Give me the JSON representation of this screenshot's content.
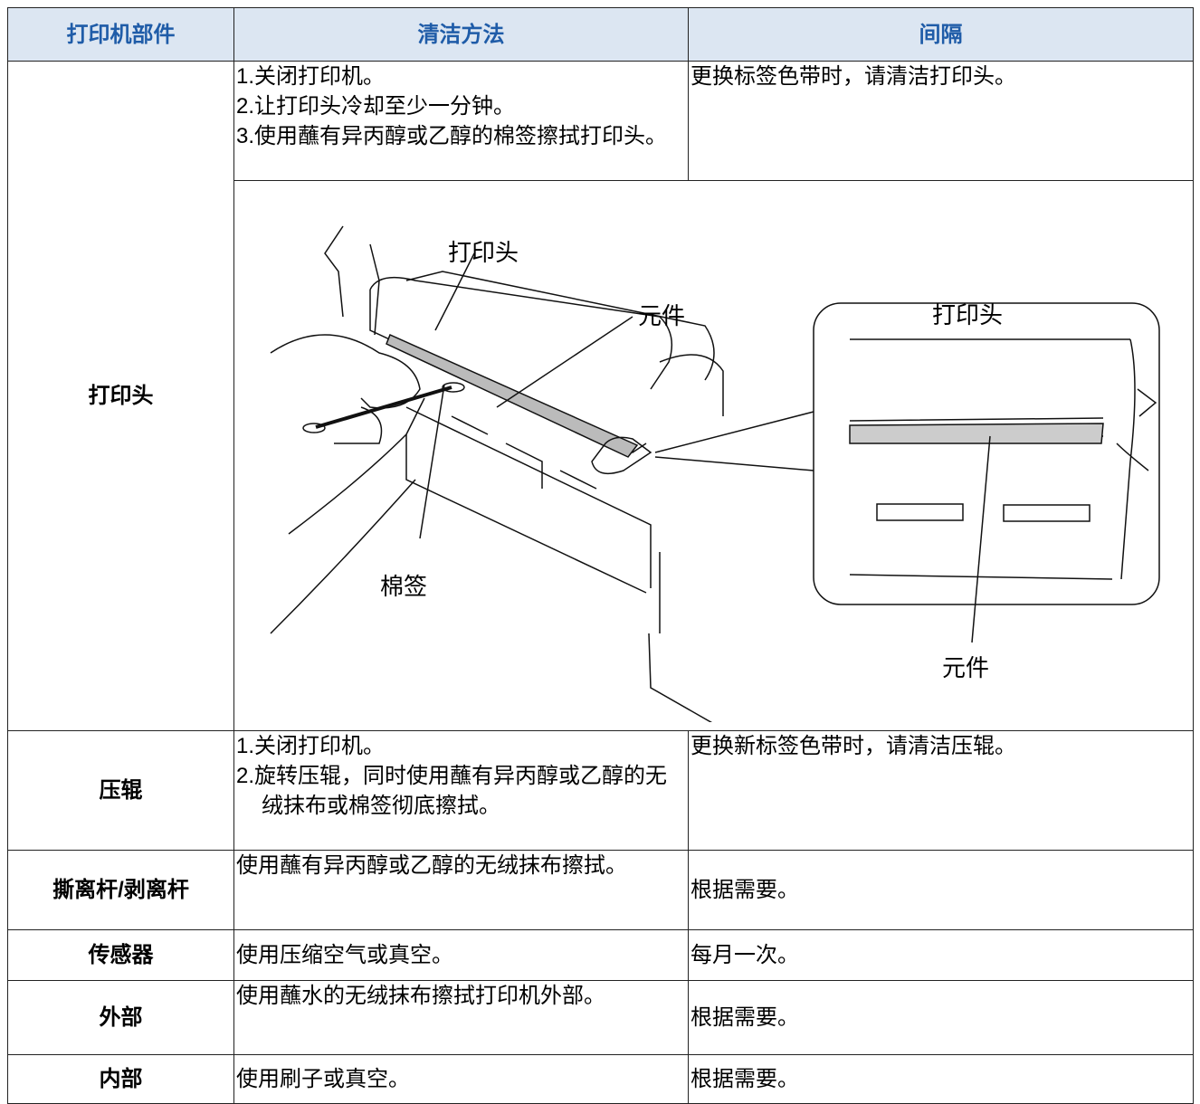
{
  "table": {
    "header": [
      "打印机部件",
      "清洁方法",
      "间隔"
    ],
    "rows": [
      {
        "part": "打印头",
        "method": [
          "1.关闭打印机。",
          "2.让打印头冷却至少一分钟。",
          "3.使用蘸有异丙醇或乙醇的棉签擦拭打印头。"
        ],
        "interval": "更换标签色带时，请清洁打印头。",
        "figure": {
          "labels": [
            "打印头",
            "元件",
            "棉签",
            "打印头",
            "元件"
          ]
        }
      },
      {
        "part": "压辊",
        "method": [
          "1.关闭打印机。",
          "2.旋转压辊，同时使用蘸有异丙醇或乙醇的无绒抹布或棉签彻底擦拭。"
        ],
        "interval": "更换新标签色带时，请清洁压辊。"
      },
      {
        "part": "撕离杆/剥离杆",
        "method": [
          "使用蘸有异丙醇或乙醇的无绒抹布擦拭。"
        ],
        "interval": "根据需要。"
      },
      {
        "part": "传感器",
        "method": [
          "使用压缩空气或真空。"
        ],
        "interval": "每月一次。"
      },
      {
        "part": "外部",
        "method": [
          "使用蘸水的无绒抹布擦拭打印机外部。"
        ],
        "interval": "根据需要。"
      },
      {
        "part": "内部",
        "method": [
          "使用刷子或真空。"
        ],
        "interval": "根据需要。"
      }
    ]
  }
}
